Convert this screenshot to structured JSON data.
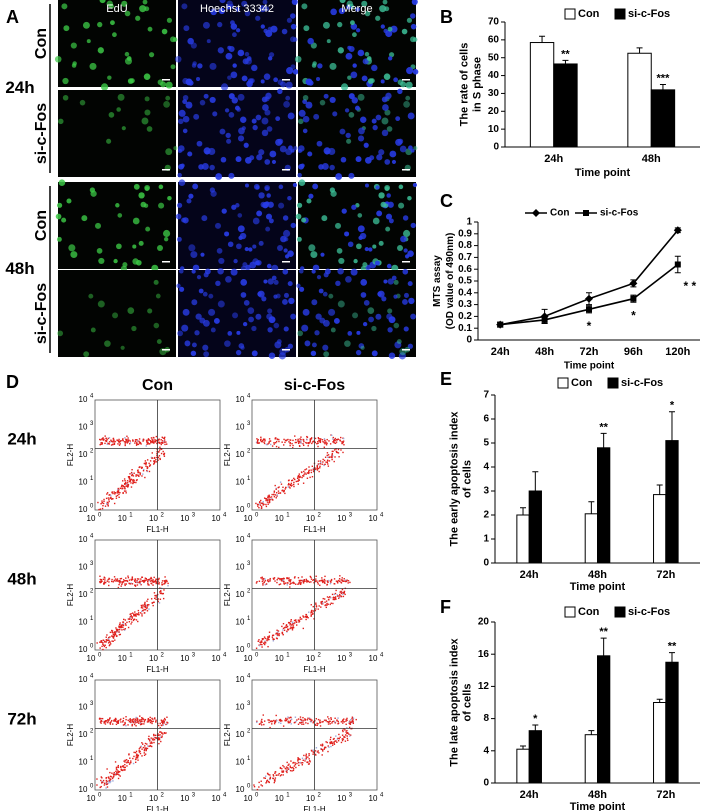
{
  "panel_a": {
    "letter": "A",
    "columns": [
      "EdU",
      "Hoechst 33342",
      "Merge"
    ],
    "groups": [
      {
        "time": "24h",
        "rows": [
          "Con",
          "si-c-Fos"
        ]
      },
      {
        "time": "48h",
        "rows": [
          "Con",
          "si-c-Fos"
        ]
      }
    ]
  },
  "panel_d": {
    "letter": "D",
    "columns": [
      "Con",
      "si-c-Fos"
    ],
    "rows": [
      "24h",
      "48h",
      "72h"
    ],
    "x_axis": "FL1-H",
    "y_axis": "FL2-H",
    "ticks": [
      {
        "base": "10",
        "exp": "0"
      },
      {
        "base": "10",
        "exp": "1"
      },
      {
        "base": "10",
        "exp": "2"
      },
      {
        "base": "10",
        "exp": "3"
      },
      {
        "base": "10",
        "exp": "4"
      }
    ]
  },
  "chart_data": [
    {
      "type": "bar",
      "label": "B",
      "ylabel": [
        "The rate of cells",
        "in S phase"
      ],
      "xlabel": "Time point",
      "categories": [
        "24h",
        "48h"
      ],
      "series": [
        {
          "name": "Con",
          "color": "#ffffff",
          "values": [
            58.5,
            52.5
          ],
          "errors": [
            3.5,
            3
          ]
        },
        {
          "name": "si-c-Fos",
          "color": "#000000",
          "values": [
            46.5,
            32
          ],
          "errors": [
            2,
            3
          ],
          "annotations": [
            "**",
            "***"
          ]
        }
      ],
      "ylim": [
        0,
        70
      ],
      "yticks": [
        0,
        10,
        20,
        30,
        40,
        50,
        60,
        70
      ]
    },
    {
      "type": "line",
      "label": "C",
      "ylabel": [
        "MTS assay",
        "(OD value of 490nm)"
      ],
      "xlabel": "Time point",
      "categories": [
        "24h",
        "48h",
        "72h",
        "96h",
        "120h"
      ],
      "series": [
        {
          "name": "Con",
          "color": "#000000",
          "marker": "diamond",
          "values": [
            0.13,
            0.2,
            0.35,
            0.48,
            0.93
          ],
          "errors": [
            0.02,
            0.06,
            0.05,
            0.03,
            0.02
          ]
        },
        {
          "name": "si-c-Fos",
          "color": "#000000",
          "marker": "square",
          "values": [
            0.13,
            0.17,
            0.26,
            0.35,
            0.64
          ],
          "errors": [
            0.02,
            0.03,
            0.03,
            0.03,
            0.07
          ],
          "annotations": [
            null,
            null,
            "*",
            "*",
            "* *"
          ]
        }
      ],
      "ylim": [
        0,
        1
      ],
      "yticks": [
        0,
        0.1,
        0.2,
        0.3,
        0.4,
        0.5,
        0.6,
        0.7,
        0.8,
        0.9,
        1
      ]
    },
    {
      "type": "bar",
      "label": "E",
      "ylabel": [
        "The early apoptosis index",
        "of cells"
      ],
      "xlabel": "Time point",
      "categories": [
        "24h",
        "48h",
        "72h"
      ],
      "series": [
        {
          "name": "Con",
          "color": "#ffffff",
          "values": [
            2.0,
            2.05,
            2.85
          ],
          "errors": [
            0.3,
            0.5,
            0.4
          ]
        },
        {
          "name": "si-c-Fos",
          "color": "#000000",
          "values": [
            3.0,
            4.8,
            5.1
          ],
          "errors": [
            0.8,
            0.6,
            1.2
          ],
          "annotations": [
            null,
            "**",
            "*"
          ]
        }
      ],
      "ylim": [
        0,
        7
      ],
      "yticks": [
        0,
        1,
        2,
        3,
        4,
        5,
        6,
        7
      ]
    },
    {
      "type": "bar",
      "label": "F",
      "ylabel": [
        "The late apoptosis index",
        "of cells"
      ],
      "xlabel": "Time point",
      "categories": [
        "24h",
        "48h",
        "72h"
      ],
      "series": [
        {
          "name": "Con",
          "color": "#ffffff",
          "values": [
            4.2,
            6.0,
            10.0
          ],
          "errors": [
            0.4,
            0.5,
            0.4
          ]
        },
        {
          "name": "si-c-Fos",
          "color": "#000000",
          "values": [
            6.5,
            15.8,
            15.0
          ],
          "errors": [
            0.7,
            2.2,
            1.2
          ],
          "annotations": [
            "*",
            "**",
            "**"
          ]
        }
      ],
      "ylim": [
        0,
        20
      ],
      "yticks": [
        0,
        4,
        8,
        12,
        16,
        20
      ]
    }
  ]
}
